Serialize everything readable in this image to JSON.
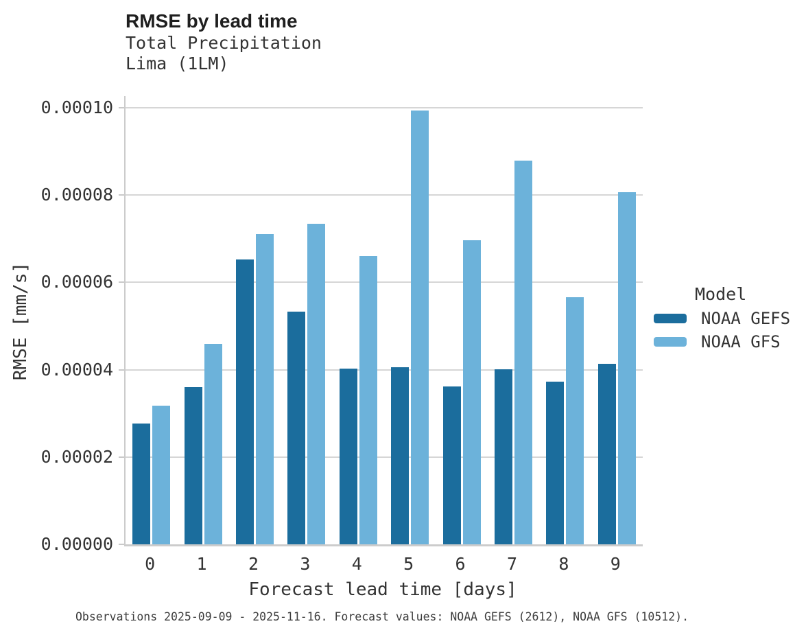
{
  "header": {
    "title": "RMSE by lead time",
    "subtitle": "Total Precipitation",
    "station": "Lima (1LM)"
  },
  "footer": {
    "text": "Observations 2025-09-09 - 2025-11-16. Forecast values: NOAA GEFS (2612), NOAA GFS (10512)."
  },
  "colors": {
    "noaa_gefs": "#1b6d9d",
    "noaa_gfs": "#6cb2da",
    "gridline": "#d6d6d6",
    "axis_spine": "#cccccc"
  },
  "chart_data": {
    "type": "bar",
    "title": "RMSE by lead time",
    "subtitle": "Total Precipitation",
    "station": "Lima (1LM)",
    "xlabel": "Forecast lead time [days]",
    "ylabel": "RMSE [mm/s]",
    "legend_title": "Model",
    "legend_position": "right",
    "grid": true,
    "categories": [
      0,
      1,
      2,
      3,
      4,
      5,
      6,
      7,
      8,
      9
    ],
    "ylim": [
      0,
      0.0001027
    ],
    "yticks": [
      0,
      2e-05,
      4e-05,
      6e-05,
      8e-05,
      0.0001
    ],
    "ytick_labels": [
      "0.00000",
      "0.00002",
      "0.00004",
      "0.00006",
      "0.00008",
      "0.00010"
    ],
    "series": [
      {
        "name": "NOAA GEFS",
        "color": "#1b6d9d",
        "values": [
          2.76e-05,
          3.6e-05,
          6.53e-05,
          5.33e-05,
          4.03e-05,
          4.06e-05,
          3.61e-05,
          4.01e-05,
          3.72e-05,
          4.13e-05
        ]
      },
      {
        "name": "NOAA GFS",
        "color": "#6cb2da",
        "values": [
          3.17e-05,
          4.59e-05,
          7.1e-05,
          7.35e-05,
          6.6e-05,
          9.93e-05,
          6.97e-05,
          8.79e-05,
          5.66e-05,
          8.07e-05
        ]
      }
    ]
  }
}
